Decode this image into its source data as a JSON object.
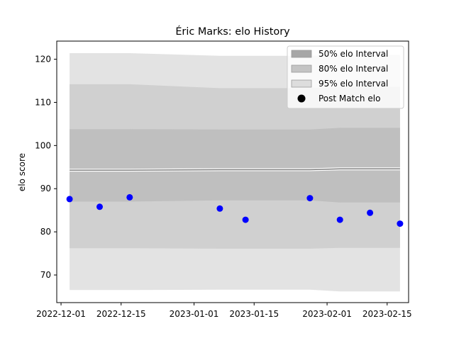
{
  "chart_data": {
    "type": "line",
    "title": "Éric Marks: elo History",
    "xlabel": "",
    "ylabel": "elo score",
    "xlim": [
      "2022-11-30",
      "2023-02-20"
    ],
    "ylim": [
      63.6,
      124.2
    ],
    "x_ticks": [
      "2022-12-01",
      "2022-12-15",
      "2023-01-01",
      "2023-01-15",
      "2023-02-01",
      "2023-02-15"
    ],
    "y_ticks": [
      70,
      80,
      90,
      100,
      110,
      120
    ],
    "grid": false,
    "legend_position": "upper right",
    "legend": [
      {
        "label": "50% elo Interval",
        "kind": "patch",
        "color": "#a6a6a6"
      },
      {
        "label": "80% elo Interval",
        "kind": "patch",
        "color": "#c4c4c4"
      },
      {
        "label": "95% elo Interval",
        "kind": "patch",
        "color": "#dddddd"
      },
      {
        "label": "Post Match elo",
        "kind": "marker",
        "color": "#000000"
      }
    ],
    "colors": {
      "band_95": "#e3e3e3",
      "band_80": "#d0d0d0",
      "band_50": "#bfbfbf",
      "mean_line": "#808080",
      "points": "#0000ff"
    },
    "dates": [
      "2022-12-03",
      "2022-12-10",
      "2022-12-17",
      "2023-01-07",
      "2023-01-13",
      "2023-01-28",
      "2023-02-04",
      "2023-02-11",
      "2023-02-18"
    ],
    "mean": [
      94.3,
      94.3,
      94.3,
      94.4,
      94.4,
      94.4,
      94.6,
      94.6,
      94.6
    ],
    "band_50": {
      "lower": [
        87.0,
        87.0,
        87.0,
        87.3,
        87.3,
        87.3,
        86.8,
        86.8,
        86.8
      ],
      "upper": [
        103.8,
        103.8,
        103.8,
        103.7,
        103.7,
        103.7,
        104.1,
        104.1,
        104.1
      ]
    },
    "band_80": {
      "lower": [
        76.2,
        76.2,
        76.2,
        76.1,
        76.1,
        76.1,
        76.3,
        76.3,
        76.3
      ],
      "upper": [
        114.2,
        114.2,
        114.2,
        113.3,
        113.3,
        113.3,
        113.6,
        113.6,
        113.6
      ]
    },
    "band_95": {
      "lower": [
        66.5,
        66.5,
        66.5,
        66.6,
        66.6,
        66.6,
        66.2,
        66.2,
        66.2
      ],
      "upper": [
        121.4,
        121.4,
        121.4,
        120.8,
        120.8,
        120.8,
        121.0,
        121.0,
        121.0
      ]
    },
    "points": [
      87.6,
      85.8,
      88.0,
      85.4,
      82.8,
      87.8,
      82.8,
      84.4,
      81.9
    ]
  }
}
